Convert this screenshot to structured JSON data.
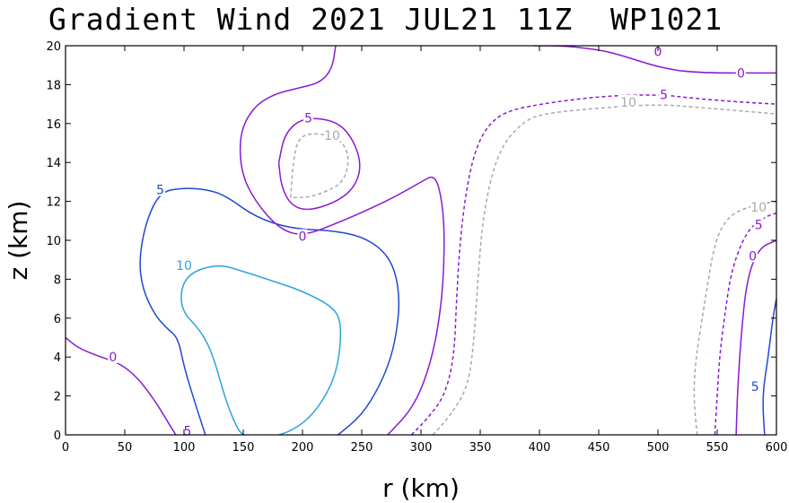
{
  "title": "Gradient Wind 2021 JUL21 11Z  WP1021",
  "chart_data": {
    "type": "contour",
    "title": "Gradient Wind 2021 JUL21 11Z  WP1021",
    "xlabel": "r (km)",
    "ylabel": "z (km)",
    "xlim": [
      0,
      600
    ],
    "ylim": [
      0,
      20
    ],
    "x_ticks": [
      0,
      50,
      100,
      150,
      200,
      250,
      300,
      350,
      400,
      450,
      500,
      550,
      600
    ],
    "y_ticks": [
      0,
      2,
      4,
      6,
      8,
      10,
      12,
      14,
      16,
      18,
      20
    ],
    "grid": false,
    "colors": {
      "10": "#2aa3e0",
      "5": "#2048d0",
      "0": "#8a1ad0",
      "-5": "#8a1ad0",
      "-10": "#a9a9a9"
    },
    "contours": [
      {
        "level": "10",
        "dashed": false,
        "points": [
          [
            180,
            0
          ],
          [
            190,
            0.2
          ],
          [
            205,
            0.8
          ],
          [
            220,
            2
          ],
          [
            230,
            3.5
          ],
          [
            233,
            5.5
          ],
          [
            228,
            6.5
          ],
          [
            200,
            7.4
          ],
          [
            175,
            7.9
          ],
          [
            150,
            8.4
          ],
          [
            128,
            8.8
          ],
          [
            100,
            8.2
          ],
          [
            96,
            6.5
          ],
          [
            115,
            5.3
          ],
          [
            125,
            4
          ],
          [
            135,
            1.8
          ],
          [
            145,
            0.3
          ],
          [
            150,
            0
          ]
        ]
      },
      {
        "level": "5",
        "dashed": false,
        "points": [
          [
            230,
            0
          ],
          [
            250,
            1
          ],
          [
            265,
            2.5
          ],
          [
            275,
            4
          ],
          [
            280,
            5.5
          ],
          [
            282,
            7
          ],
          [
            278,
            8.5
          ],
          [
            268,
            9.5
          ],
          [
            250,
            10.2
          ],
          [
            225,
            10.5
          ],
          [
            190,
            10.6
          ],
          [
            160,
            11.2
          ],
          [
            135,
            12.3
          ],
          [
            120,
            12.6
          ],
          [
            100,
            12.7
          ],
          [
            80,
            12.5
          ],
          [
            68,
            11
          ],
          [
            62,
            9
          ],
          [
            65,
            7.5
          ],
          [
            75,
            6.2
          ],
          [
            85,
            5.5
          ],
          [
            95,
            5
          ],
          [
            100,
            3.5
          ],
          [
            110,
            1.5
          ],
          [
            118,
            0
          ]
        ]
      },
      {
        "level": "5",
        "dashed": false,
        "points": [
          [
            590,
            0
          ],
          [
            588,
            2
          ],
          [
            593,
            4
          ],
          [
            597,
            6
          ],
          [
            600,
            7
          ]
        ]
      },
      {
        "level": "0",
        "dashed": false,
        "points": [
          [
            272,
            0
          ],
          [
            295,
            1.5
          ],
          [
            310,
            4
          ],
          [
            318,
            7
          ],
          [
            320,
            10
          ],
          [
            318,
            12
          ],
          [
            312,
            13.4
          ],
          [
            300,
            13
          ],
          [
            280,
            12.3
          ],
          [
            260,
            11.7
          ],
          [
            230,
            10.9
          ],
          [
            200,
            10.2
          ],
          [
            180,
            10.6
          ],
          [
            160,
            12
          ],
          [
            148,
            13.5
          ],
          [
            147,
            15.5
          ],
          [
            158,
            16.8
          ],
          [
            175,
            17.5
          ],
          [
            195,
            17.8
          ],
          [
            215,
            18.1
          ],
          [
            225,
            18.8
          ],
          [
            228,
            20
          ]
        ]
      },
      {
        "level": "0",
        "dashed": false,
        "points": [
          [
            0,
            5
          ],
          [
            10,
            4.5
          ],
          [
            25,
            4.1
          ],
          [
            45,
            3.7
          ],
          [
            60,
            3
          ],
          [
            75,
            1.8
          ],
          [
            85,
            0.8
          ],
          [
            93,
            0
          ]
        ]
      },
      {
        "level": "0",
        "dashed": false,
        "points": [
          [
            395,
            20
          ],
          [
            420,
            20
          ],
          [
            450,
            19.8
          ],
          [
            470,
            19.5
          ],
          [
            500,
            18.9
          ],
          [
            530,
            18.6
          ],
          [
            600,
            18.6
          ]
        ]
      },
      {
        "level": "0",
        "dashed": false,
        "points": [
          [
            566,
            0
          ],
          [
            567,
            2
          ],
          [
            570,
            5
          ],
          [
            575,
            8
          ],
          [
            585,
            9.6
          ],
          [
            600,
            10
          ]
        ]
      },
      {
        "level": "-5",
        "dashed": false,
        "points": [
          [
            180,
            14
          ],
          [
            185,
            15.5
          ],
          [
            200,
            16.3
          ],
          [
            225,
            16.2
          ],
          [
            240,
            15.5
          ],
          [
            250,
            14
          ],
          [
            245,
            12.8
          ],
          [
            230,
            12
          ],
          [
            205,
            11.5
          ],
          [
            190,
            11.8
          ],
          [
            182,
            12.8
          ],
          [
            180,
            14
          ]
        ]
      },
      {
        "level": "-5",
        "dashed": true,
        "points": [
          [
            292,
            0
          ],
          [
            305,
            0.8
          ],
          [
            320,
            2
          ],
          [
            328,
            4
          ],
          [
            330,
            7
          ],
          [
            333,
            10
          ],
          [
            338,
            12.5
          ],
          [
            345,
            14.5
          ],
          [
            355,
            15.8
          ],
          [
            370,
            16.6
          ],
          [
            400,
            17
          ],
          [
            450,
            17.4
          ],
          [
            500,
            17.5
          ],
          [
            530,
            17.3
          ],
          [
            570,
            17.1
          ],
          [
            600,
            17
          ]
        ]
      },
      {
        "level": "-5",
        "dashed": true,
        "points": [
          [
            548,
            0
          ],
          [
            550,
            2
          ],
          [
            552,
            4
          ],
          [
            556,
            6
          ],
          [
            562,
            8.5
          ],
          [
            575,
            10.5
          ],
          [
            590,
            11.2
          ],
          [
            600,
            11.4
          ]
        ]
      },
      {
        "level": "-10",
        "dashed": true,
        "points": [
          [
            190,
            12.2
          ],
          [
            192,
            14
          ],
          [
            197,
            15.4
          ],
          [
            215,
            15.5
          ],
          [
            232,
            15.2
          ],
          [
            240,
            14.3
          ],
          [
            235,
            13
          ],
          [
            220,
            12.5
          ],
          [
            205,
            12.2
          ],
          [
            190,
            12.2
          ]
        ]
      },
      {
        "level": "-10",
        "dashed": true,
        "points": [
          [
            310,
            0
          ],
          [
            325,
            1
          ],
          [
            340,
            2.5
          ],
          [
            345,
            5
          ],
          [
            348,
            8
          ],
          [
            352,
            11
          ],
          [
            360,
            13.5
          ],
          [
            370,
            15
          ],
          [
            385,
            16
          ],
          [
            400,
            16.5
          ],
          [
            450,
            16.8
          ],
          [
            500,
            17
          ],
          [
            540,
            16.8
          ],
          [
            600,
            16.5
          ]
        ]
      },
      {
        "level": "-10",
        "dashed": true,
        "points": [
          [
            533,
            0
          ],
          [
            530,
            2
          ],
          [
            532,
            4
          ],
          [
            540,
            7
          ],
          [
            548,
            10
          ],
          [
            560,
            11.3
          ],
          [
            580,
            11.8
          ],
          [
            600,
            12
          ]
        ]
      }
    ],
    "labels": [
      {
        "text": "10",
        "x": 100,
        "y": 8.7,
        "level": "10"
      },
      {
        "text": "5",
        "x": 80,
        "y": 12.6,
        "level": "5"
      },
      {
        "text": "5",
        "x": 582,
        "y": 2.5,
        "level": "5"
      },
      {
        "text": "0",
        "x": 40,
        "y": 4,
        "level": "0"
      },
      {
        "text": "0",
        "x": 200,
        "y": 10.2,
        "level": "0"
      },
      {
        "text": "0",
        "x": 500,
        "y": 19.7,
        "level": "0"
      },
      {
        "text": "0",
        "x": 570,
        "y": 18.6,
        "level": "0"
      },
      {
        "text": "0",
        "x": 580,
        "y": 9.2,
        "level": "0"
      },
      {
        "text": "5",
        "x": 103,
        "y": 0.2,
        "level": "-5"
      },
      {
        "text": "5",
        "x": 205,
        "y": 16.3,
        "level": "-5"
      },
      {
        "text": "5",
        "x": 505,
        "y": 17.5,
        "level": "-5"
      },
      {
        "text": "5",
        "x": 585,
        "y": 10.8,
        "level": "-5"
      },
      {
        "text": "10",
        "x": 225,
        "y": 15.4,
        "level": "-10"
      },
      {
        "text": "10",
        "x": 475,
        "y": 17.1,
        "level": "-10"
      },
      {
        "text": "10",
        "x": 585,
        "y": 11.7,
        "level": "-10"
      }
    ]
  }
}
